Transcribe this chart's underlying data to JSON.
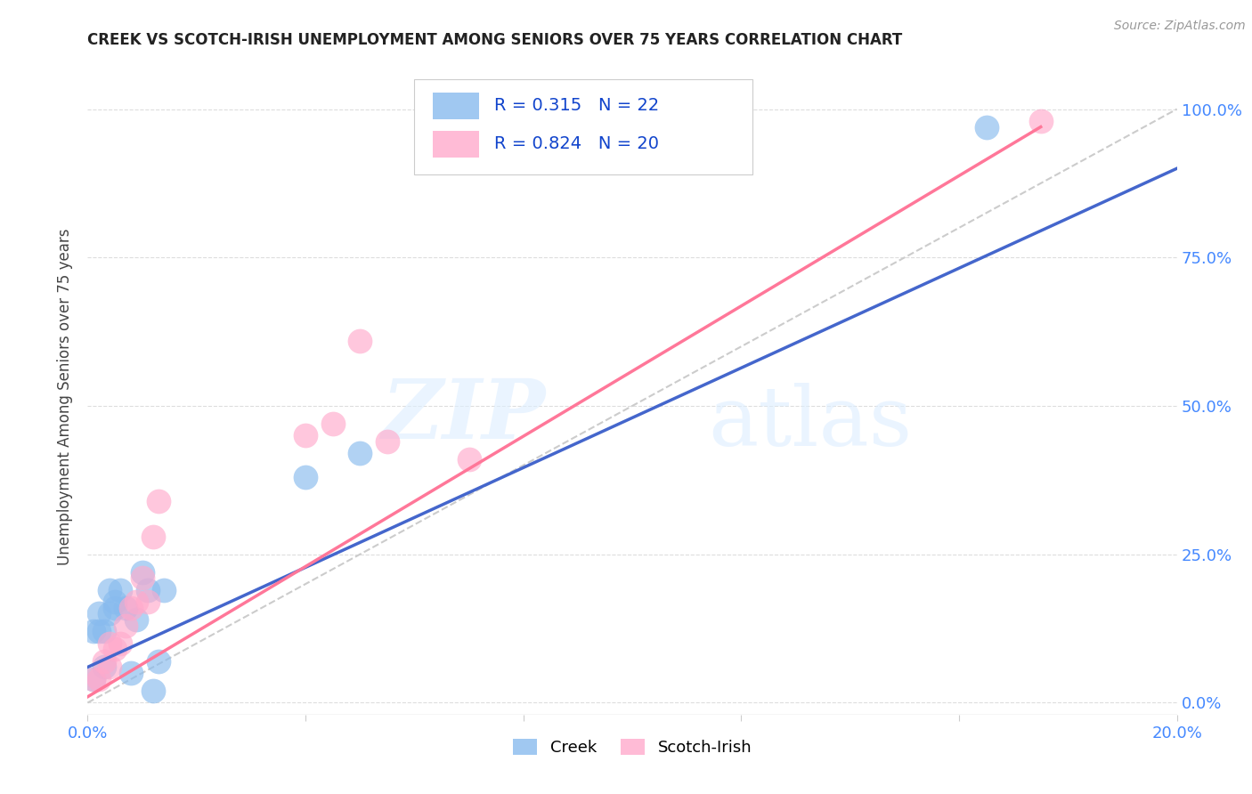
{
  "title": "CREEK VS SCOTCH-IRISH UNEMPLOYMENT AMONG SENIORS OVER 75 YEARS CORRELATION CHART",
  "source": "Source: ZipAtlas.com",
  "ylabel": "Unemployment Among Seniors over 75 years",
  "xlim": [
    0.0,
    0.2
  ],
  "ylim": [
    -0.02,
    1.05
  ],
  "x_ticks": [
    0.0,
    0.04,
    0.08,
    0.12,
    0.16,
    0.2
  ],
  "y_ticks": [
    0.0,
    0.25,
    0.5,
    0.75,
    1.0
  ],
  "y_tick_labels_right": [
    "0.0%",
    "25.0%",
    "50.0%",
    "75.0%",
    "100.0%"
  ],
  "creek_R": 0.315,
  "creek_N": 22,
  "scotch_R": 0.824,
  "scotch_N": 20,
  "creek_color": "#88BBEE",
  "scotch_color": "#FFAACC",
  "creek_line_color": "#4466CC",
  "scotch_line_color": "#FF7799",
  "diagonal_color": "#CCCCCC",
  "creek_scatter_x": [
    0.001,
    0.001,
    0.002,
    0.002,
    0.003,
    0.003,
    0.004,
    0.004,
    0.005,
    0.005,
    0.006,
    0.007,
    0.008,
    0.009,
    0.01,
    0.011,
    0.012,
    0.013,
    0.014,
    0.04,
    0.05,
    0.165
  ],
  "creek_scatter_y": [
    0.04,
    0.12,
    0.12,
    0.15,
    0.06,
    0.12,
    0.15,
    0.19,
    0.16,
    0.17,
    0.19,
    0.16,
    0.05,
    0.14,
    0.22,
    0.19,
    0.02,
    0.07,
    0.19,
    0.38,
    0.42,
    0.97
  ],
  "scotch_scatter_x": [
    0.001,
    0.002,
    0.003,
    0.004,
    0.004,
    0.005,
    0.006,
    0.007,
    0.008,
    0.009,
    0.01,
    0.011,
    0.012,
    0.013,
    0.04,
    0.045,
    0.05,
    0.055,
    0.07,
    0.175
  ],
  "scotch_scatter_y": [
    0.04,
    0.04,
    0.07,
    0.06,
    0.1,
    0.09,
    0.1,
    0.13,
    0.16,
    0.17,
    0.21,
    0.17,
    0.28,
    0.34,
    0.45,
    0.47,
    0.61,
    0.44,
    0.41,
    0.98
  ],
  "creek_line_x": [
    0.0,
    0.2
  ],
  "creek_line_y": [
    0.06,
    0.9
  ],
  "scotch_line_x": [
    0.0,
    0.175
  ],
  "scotch_line_y": [
    0.01,
    0.97
  ],
  "background_color": "#FFFFFF",
  "grid_color": "#DDDDDD",
  "watermark_zip": "ZIP",
  "watermark_atlas": "atlas",
  "title_color": "#222222",
  "axis_label_color": "#444444",
  "tick_color": "#4488FF"
}
